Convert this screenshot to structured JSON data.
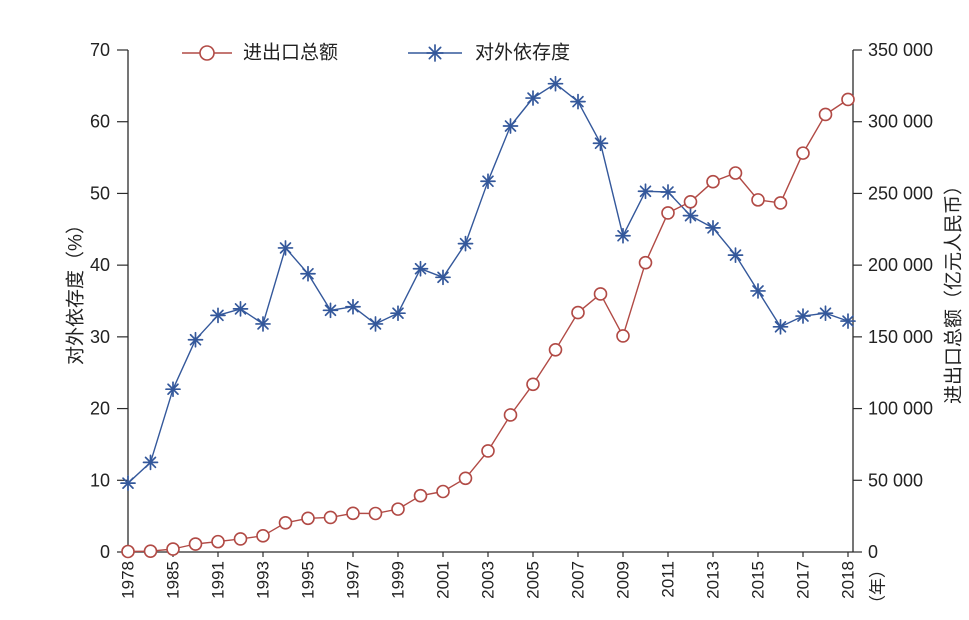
{
  "chart_data": {
    "type": "line",
    "categories": [
      "1978",
      "",
      "1985",
      "",
      "1991",
      "",
      "1993",
      "",
      "1995",
      "",
      "1997",
      "",
      "1999",
      "",
      "2001",
      "",
      "2003",
      "",
      "2005",
      "",
      "2007",
      "",
      "2009",
      "",
      "2011",
      "",
      "2013",
      "",
      "2015",
      "",
      "2017",
      "",
      "2018"
    ],
    "xlabel": "（年）",
    "ylabel": "对外依存度（%）",
    "ylim": [
      0,
      70
    ],
    "yticks": [
      0,
      10,
      20,
      30,
      40,
      50,
      60,
      70
    ],
    "y2label": "进出口总额（亿元人民币）",
    "y2lim": [
      0,
      350000
    ],
    "y2ticks": [
      0,
      50000,
      100000,
      150000,
      200000,
      250000,
      300000,
      350000
    ],
    "y2tick_labels": [
      "0",
      "50 000",
      "100 000",
      "150 000",
      "200 000",
      "250 000",
      "300 000",
      "350 000"
    ],
    "grid": false,
    "legend": "top-left",
    "series": [
      {
        "name": "进出口总额",
        "y_axis": "right",
        "marker": "circle",
        "color": "#b14a45",
        "values": [
          355,
          570,
          2070,
          5560,
          7230,
          9120,
          11270,
          20380,
          23500,
          24130,
          26970,
          26850,
          29900,
          39270,
          42180,
          51380,
          70480,
          95540,
          116920,
          140970,
          166920,
          179920,
          150650,
          201720,
          236400,
          244160,
          258170,
          264240,
          245500,
          243390,
          278100,
          305050,
          315500
        ]
      },
      {
        "name": "对外依存度",
        "y_axis": "left",
        "marker": "asterisk",
        "color": "#34589b",
        "values": [
          9.6,
          12.5,
          22.7,
          29.6,
          33.0,
          33.9,
          31.8,
          42.4,
          38.8,
          33.7,
          34.2,
          31.8,
          33.3,
          39.5,
          38.3,
          43.0,
          51.7,
          59.4,
          63.3,
          65.3,
          62.8,
          57.0,
          44.1,
          50.3,
          50.2,
          46.9,
          45.2,
          41.4,
          36.4,
          31.4,
          32.9,
          33.3,
          32.2
        ]
      }
    ]
  },
  "colors": {
    "axis": "#2b2b2b",
    "background": "#ffffff"
  }
}
